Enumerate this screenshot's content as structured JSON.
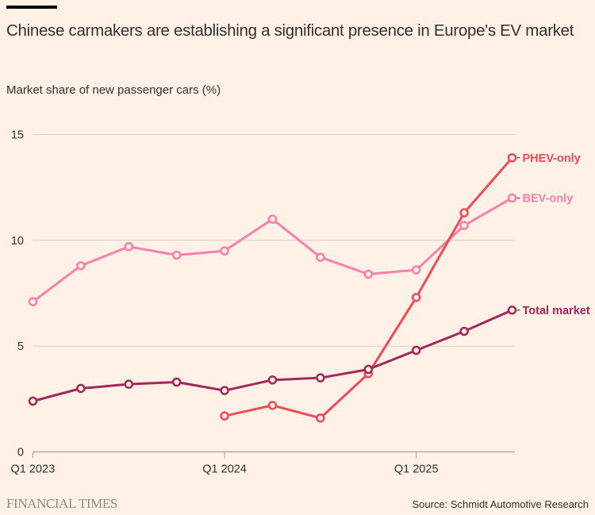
{
  "header": {
    "title": "Chinese carmakers are establishing a significant presence in Europe's EV market",
    "subtitle": "Market share of new passenger cars (%)"
  },
  "footer": {
    "logo": "FINANCIAL TIMES",
    "source": "Source: Schmidt Automotive Research"
  },
  "chart_data": {
    "type": "line",
    "title": "Chinese carmakers are establishing a significant presence in Europe's EV market",
    "ylabel": "Market share of new passenger cars (%)",
    "xlabel": "",
    "x": [
      "Q1 2023",
      "Q2 2023",
      "Q3 2023",
      "Q4 2023",
      "Q1 2024",
      "Q2 2024",
      "Q3 2024",
      "Q4 2024",
      "Q1 2025",
      "Q2 2025",
      "Q3 2025"
    ],
    "x_tick_labels": [
      "Q1 2023",
      "Q1 2024",
      "Q1 2025"
    ],
    "x_tick_indices": [
      0,
      4,
      8
    ],
    "ylim": [
      0,
      15
    ],
    "y_ticks": [
      0,
      5,
      10,
      15
    ],
    "grid": true,
    "legend": "direct labels at line ends (right)",
    "series": [
      {
        "name": "BEV-only",
        "color": "#ff7faa",
        "values": [
          7.1,
          8.8,
          9.7,
          9.3,
          9.5,
          11.0,
          9.2,
          8.4,
          8.6,
          10.7,
          12.0
        ]
      },
      {
        "name": "PHEV-only",
        "color": "#f04a58",
        "values": [
          null,
          null,
          null,
          null,
          1.7,
          2.2,
          1.6,
          3.7,
          7.3,
          11.3,
          13.9
        ]
      },
      {
        "name": "Total market",
        "color": "#a3275a",
        "values": [
          2.4,
          3.0,
          3.2,
          3.3,
          2.9,
          3.4,
          3.5,
          3.9,
          4.8,
          5.7,
          6.7
        ]
      }
    ]
  }
}
